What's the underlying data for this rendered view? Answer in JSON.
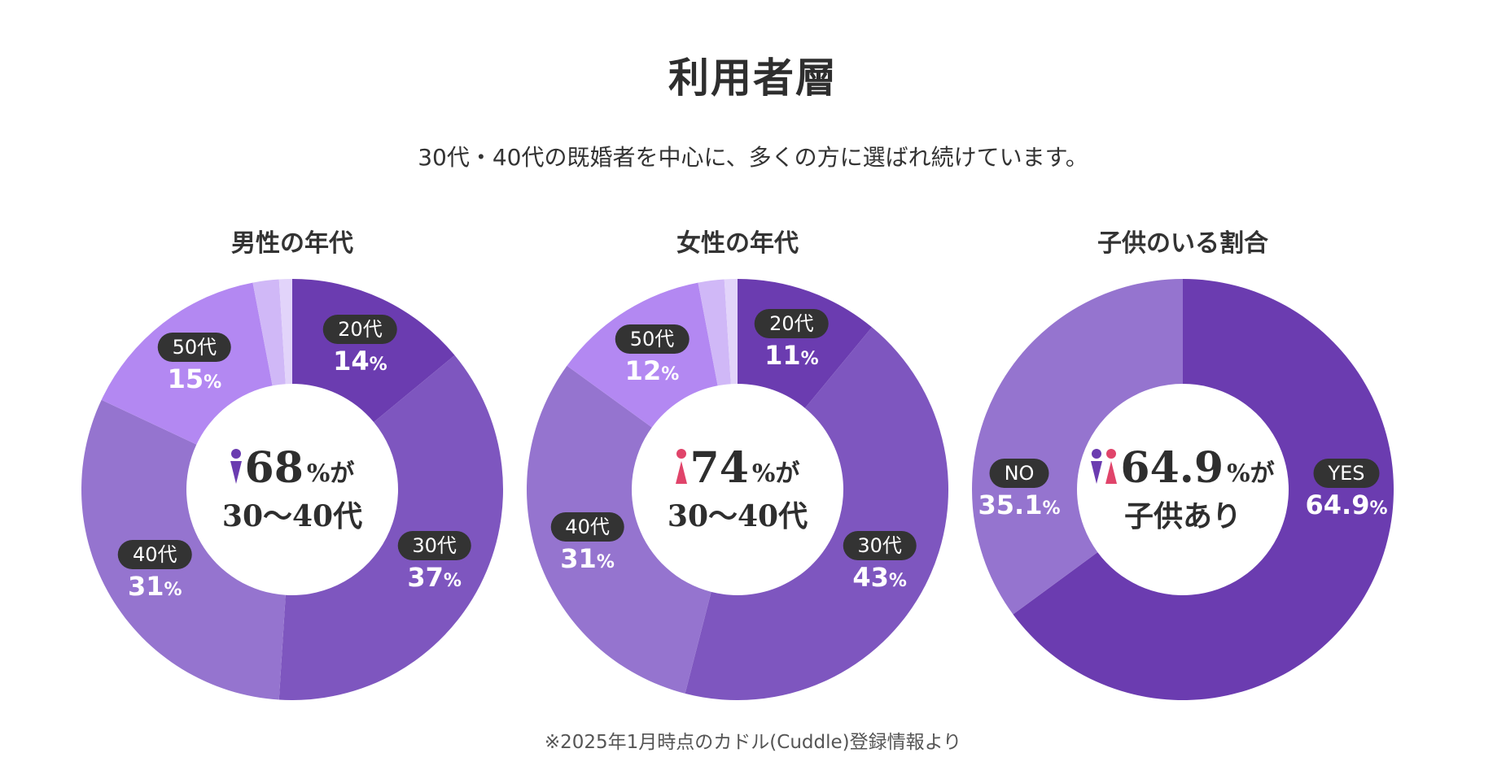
{
  "header": {
    "title": "利用者層",
    "subtitle": "30代・40代の既婚者を中心に、多くの方に選ばれ続けています。"
  },
  "footnote": "※2025年1月時点のカドル(Cuddle)登録情報より",
  "colors": {
    "male_icon": "#6b3cb0",
    "female_icon": "#e0446a",
    "pill": "#333333"
  },
  "chart_data": [
    {
      "type": "pie",
      "donut": true,
      "title": "男性の年代",
      "center": {
        "icon": "male-person-icon",
        "value": "68",
        "unit": "%が",
        "line2": "30〜40代"
      },
      "slices": [
        {
          "label": "20代",
          "value": 14,
          "display": "14",
          "color": "#6b3cb0"
        },
        {
          "label": "30代",
          "value": 37,
          "display": "37",
          "color": "#7e56bf"
        },
        {
          "label": "40代",
          "value": 31,
          "display": "31",
          "color": "#9574cf"
        },
        {
          "label": "50代",
          "value": 15,
          "display": "15",
          "color": "#b388f2"
        },
        {
          "label": "",
          "value": 2,
          "color": "#d0b8f7"
        },
        {
          "label": "",
          "value": 1,
          "color": "#e2d4fa"
        }
      ]
    },
    {
      "type": "pie",
      "donut": true,
      "title": "女性の年代",
      "center": {
        "icon": "female-person-icon",
        "value": "74",
        "unit": "%が",
        "line2": "30〜40代"
      },
      "slices": [
        {
          "label": "20代",
          "value": 11,
          "display": "11",
          "color": "#6b3cb0"
        },
        {
          "label": "30代",
          "value": 43,
          "display": "43",
          "color": "#7e56bf"
        },
        {
          "label": "40代",
          "value": 31,
          "display": "31",
          "color": "#9574cf"
        },
        {
          "label": "50代",
          "value": 12,
          "display": "12",
          "color": "#b388f2"
        },
        {
          "label": "",
          "value": 2,
          "color": "#d0b8f7"
        },
        {
          "label": "",
          "value": 1,
          "color": "#e2d4fa"
        }
      ]
    },
    {
      "type": "pie",
      "donut": true,
      "title": "子供のいる割合",
      "center": {
        "icon": "couple-icon",
        "value": "64.9",
        "unit": "%が",
        "line2": "子供あり"
      },
      "slices": [
        {
          "label": "YES",
          "value": 64.9,
          "display": "64.9",
          "color": "#6b3cb0"
        },
        {
          "label": "NO",
          "value": 35.1,
          "display": "35.1",
          "color": "#9574cf"
        }
      ]
    }
  ]
}
